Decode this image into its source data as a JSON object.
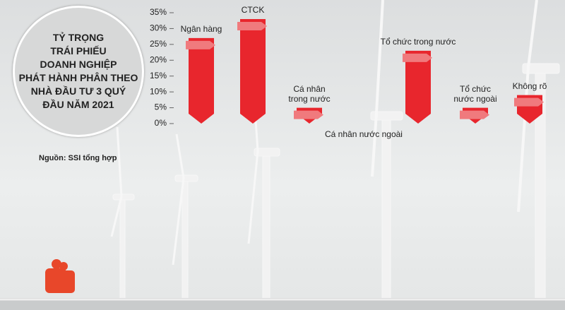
{
  "chart_data": {
    "type": "bar",
    "title": [
      "TỶ TRỌNG",
      "TRÁI PHIẾU",
      "DOANH NGHIỆP",
      "PHÁT HÀNH PHÂN THEO",
      "NHÀ ĐẦU TƯ 3 QUÝ",
      "ĐẦU NĂM 2021"
    ],
    "source": "Nguồn: SSI tổng hợp",
    "categories": [
      "Ngân hàng",
      "CTCK",
      "Cá nhân trong nước",
      "Cá nhân nước ngoài",
      "Tổ chức trong nước",
      "Tổ chức nước ngoài",
      "Không rõ"
    ],
    "values": [
      27,
      33,
      5,
      0,
      23,
      5,
      9
    ],
    "color": "#e8262d",
    "ylim": [
      0,
      35
    ],
    "yticks": [
      {
        "value": 0,
        "label": "0%"
      },
      {
        "value": 5,
        "label": "5%"
      },
      {
        "value": 10,
        "label": "10%"
      },
      {
        "value": 15,
        "label": "15%"
      },
      {
        "value": 20,
        "label": "20%"
      },
      {
        "value": 25,
        "label": "25%"
      },
      {
        "value": 30,
        "label": "30%"
      },
      {
        "value": 35,
        "label": "35%"
      }
    ]
  }
}
